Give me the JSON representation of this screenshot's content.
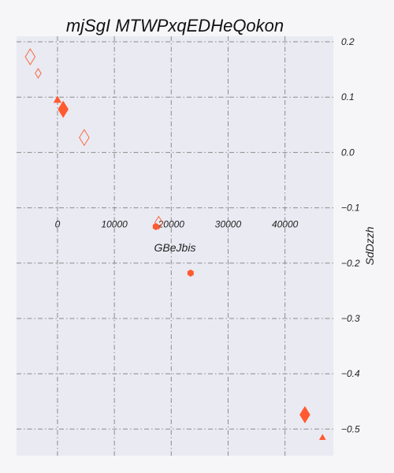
{
  "chart_data": {
    "type": "scatter",
    "title": "mjSgI MTWPxqEDHeQokon",
    "xlabel": "GBeJbis",
    "ylabel": "SdDzzh",
    "xlim": [
      -7200,
      48500
    ],
    "ylim": [
      -0.548,
      0.21
    ],
    "x_ticks": [
      0,
      10000,
      20000,
      30000,
      40000
    ],
    "x_tick_labels": [
      "0",
      "10000",
      "20000",
      "30000",
      "40000"
    ],
    "y_ticks": [
      0.2,
      0.1,
      0.0,
      -0.1,
      -0.2,
      -0.3,
      -0.4,
      -0.5
    ],
    "y_tick_labels": [
      "0.2",
      "0.1",
      "0.0",
      "−0.1",
      "−0.2",
      "−0.3",
      "−0.4",
      "−0.5"
    ],
    "x_axis_position": "inside, at y = -0.13",
    "y_axis_position": "right",
    "grid": true,
    "colors": {
      "marker": "#ff5a30",
      "plot_background": "#e9eaf2",
      "grid": "#8c8c8c"
    },
    "points": [
      {
        "x": -4800,
        "y": 0.173,
        "marker": "diamond",
        "filled": false,
        "size": 10
      },
      {
        "x": -3400,
        "y": 0.143,
        "marker": "diamond",
        "filled": false,
        "size": 6
      },
      {
        "x": 0,
        "y": 0.094,
        "marker": "tri",
        "filled": true,
        "size": 5
      },
      {
        "x": 1000,
        "y": 0.078,
        "marker": "diamond",
        "filled": true,
        "size": 10
      },
      {
        "x": 4700,
        "y": 0.027,
        "marker": "diamond",
        "filled": false,
        "size": 10
      },
      {
        "x": 17800,
        "y": -0.127,
        "marker": "diamond",
        "filled": false,
        "size": 8
      },
      {
        "x": 17300,
        "y": -0.134,
        "marker": "hexagon",
        "filled": true,
        "size": 4
      },
      {
        "x": 23400,
        "y": -0.218,
        "marker": "hexagon",
        "filled": true,
        "size": 4
      },
      {
        "x": 43500,
        "y": -0.474,
        "marker": "diamond",
        "filled": true,
        "size": 10
      },
      {
        "x": 46600,
        "y": -0.516,
        "marker": "tri",
        "filled": true,
        "size": 4
      }
    ]
  }
}
